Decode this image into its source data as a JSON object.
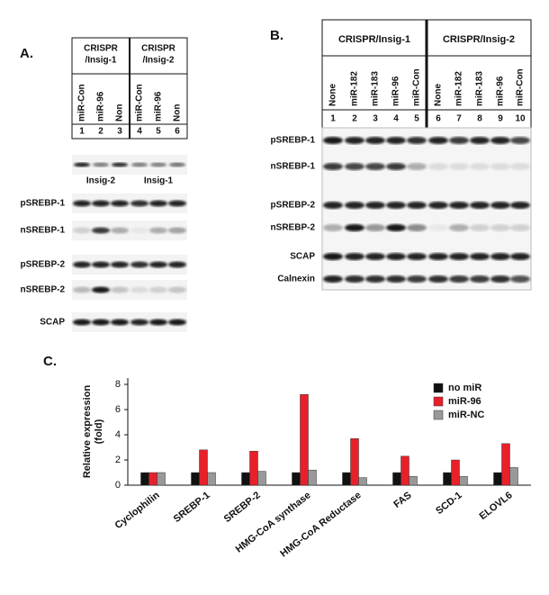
{
  "panels": {
    "A": {
      "label": "A.",
      "groups": [
        [
          "CRISPR",
          "/Insig-1"
        ],
        [
          "CRISPR",
          "/Insig-2"
        ]
      ],
      "lanes": [
        "miR-Con",
        "miR-96",
        "Non",
        "miR-Con",
        "miR-96",
        "Non"
      ],
      "lane_numbers": [
        1,
        2,
        3,
        4,
        5,
        6
      ],
      "insig_labels": [
        "Insig-2",
        "Insig-1"
      ],
      "rows": [
        "pSREBP-1",
        "nSREBP-1",
        "pSREBP-2",
        "nSREBP-2",
        "SCAP"
      ]
    },
    "B": {
      "label": "B.",
      "groups": [
        "CRISPR/Insig-1",
        "CRISPR/Insig-2"
      ],
      "lanes": [
        "None",
        "miR-182",
        "miR-183",
        "miR-96",
        "miR-Con",
        "None",
        "miR-182",
        "miR-183",
        "miR-96",
        "miR-Con"
      ],
      "lane_numbers": [
        1,
        2,
        3,
        4,
        5,
        6,
        7,
        8,
        9,
        10
      ],
      "rows": [
        "pSREBP-1",
        "nSREBP-1",
        "pSREBP-2",
        "nSREBP-2",
        "SCAP",
        "Calnexin"
      ]
    }
  },
  "chart_data": {
    "type": "bar",
    "panel_label": "C.",
    "ylabel": [
      "Relative expression",
      "(fold)"
    ],
    "categories": [
      "Cyclophilin",
      "SREBP-1",
      "SREBP-2",
      "HMG-CoA synthase",
      "HMG-CoA Reductase",
      "FAS",
      "SCD-1",
      "ELOVL6"
    ],
    "series": [
      {
        "name": "no miR",
        "color": "#111111",
        "values": [
          1,
          1,
          1,
          1,
          1,
          1,
          1,
          1
        ]
      },
      {
        "name": "miR-96",
        "color": "#e8202a",
        "values": [
          1,
          2.8,
          2.7,
          7.2,
          3.7,
          2.3,
          2.0,
          3.3
        ]
      },
      {
        "name": "miR-NC",
        "color": "#999999",
        "values": [
          1,
          1.0,
          1.1,
          1.2,
          0.6,
          0.7,
          0.7,
          1.4
        ]
      }
    ],
    "ylim": [
      0,
      8.5
    ],
    "yticks": [
      0,
      2,
      4,
      6,
      8
    ],
    "legend": "upper right"
  }
}
